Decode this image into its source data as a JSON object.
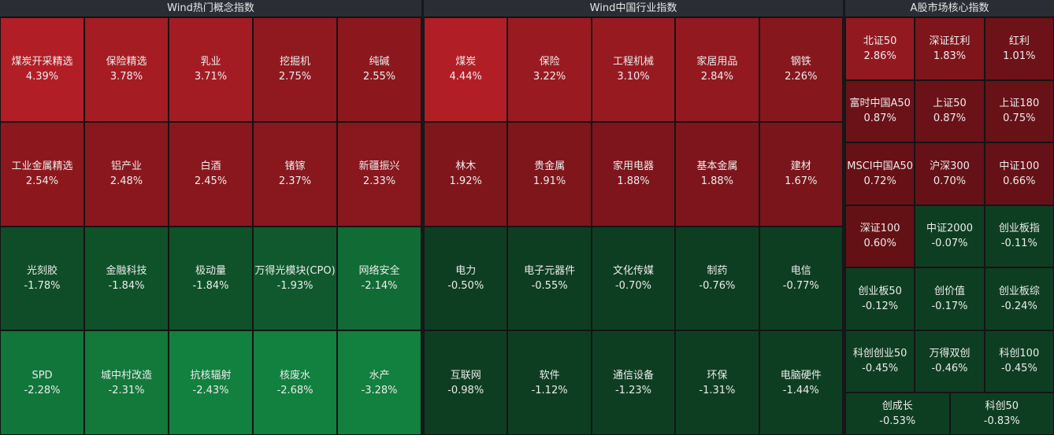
{
  "panels": [
    {
      "title": "Wind热门概念指数",
      "rows": [
        [
          {
            "name": "煤炭开采精选",
            "change": "4.39%"
          },
          {
            "name": "保险精选",
            "change": "3.78%"
          },
          {
            "name": "乳业",
            "change": "3.71%"
          },
          {
            "name": "挖掘机",
            "change": "2.75%"
          },
          {
            "name": "纯碱",
            "change": "2.55%"
          }
        ],
        [
          {
            "name": "工业金属精选",
            "change": "2.54%"
          },
          {
            "name": "铝产业",
            "change": "2.48%"
          },
          {
            "name": "白酒",
            "change": "2.45%"
          },
          {
            "name": "锗镓",
            "change": "2.37%"
          },
          {
            "name": "新疆振兴",
            "change": "2.33%"
          }
        ],
        [
          {
            "name": "光刻胶",
            "change": "-1.78%"
          },
          {
            "name": "金融科技",
            "change": "-1.84%"
          },
          {
            "name": "极动量",
            "change": "-1.84%"
          },
          {
            "name": "万得光模块(CPO)",
            "change": "-1.93%"
          },
          {
            "name": "网络安全",
            "change": "-2.14%"
          }
        ],
        [
          {
            "name": "SPD",
            "change": "-2.28%"
          },
          {
            "name": "城中村改造",
            "change": "-2.31%"
          },
          {
            "name": "抗核辐射",
            "change": "-2.43%"
          },
          {
            "name": "核废水",
            "change": "-2.68%"
          },
          {
            "name": "水产",
            "change": "-3.28%"
          }
        ]
      ]
    },
    {
      "title": "Wind中国行业指数",
      "rows": [
        [
          {
            "name": "煤炭",
            "change": "4.44%"
          },
          {
            "name": "保险",
            "change": "3.22%"
          },
          {
            "name": "工程机械",
            "change": "3.10%"
          },
          {
            "name": "家居用品",
            "change": "2.84%"
          },
          {
            "name": "钢铁",
            "change": "2.26%"
          }
        ],
        [
          {
            "name": "林木",
            "change": "1.92%"
          },
          {
            "name": "贵金属",
            "change": "1.91%"
          },
          {
            "name": "家用电器",
            "change": "1.88%"
          },
          {
            "name": "基本金属",
            "change": "1.88%"
          },
          {
            "name": "建材",
            "change": "1.67%"
          }
        ],
        [
          {
            "name": "电力",
            "change": "-0.50%"
          },
          {
            "name": "电子元器件",
            "change": "-0.55%"
          },
          {
            "name": "文化传媒",
            "change": "-0.70%"
          },
          {
            "name": "制药",
            "change": "-0.76%"
          },
          {
            "name": "电信",
            "change": "-0.77%"
          }
        ],
        [
          {
            "name": "互联网",
            "change": "-0.98%"
          },
          {
            "name": "软件",
            "change": "-1.12%"
          },
          {
            "name": "通信设备",
            "change": "-1.23%"
          },
          {
            "name": "环保",
            "change": "-1.31%"
          },
          {
            "name": "电脑硬件",
            "change": "-1.44%"
          }
        ]
      ]
    },
    {
      "title": "A股市场核心指数",
      "rows": [
        [
          {
            "name": "北证50",
            "change": "2.86%"
          },
          {
            "name": "深证红利",
            "change": "1.83%"
          },
          {
            "name": "红利",
            "change": "1.01%"
          }
        ],
        [
          {
            "name": "富时中国A50",
            "change": "0.87%"
          },
          {
            "name": "上证50",
            "change": "0.87%"
          },
          {
            "name": "上证180",
            "change": "0.75%"
          }
        ],
        [
          {
            "name": "MSCI中国A50",
            "change": "0.72%"
          },
          {
            "name": "沪深300",
            "change": "0.70%"
          },
          {
            "name": "中证100",
            "change": "0.66%"
          }
        ],
        [
          {
            "name": "深证100",
            "change": "0.60%"
          },
          {
            "name": "中证2000",
            "change": "-0.07%"
          },
          {
            "name": "创业板指",
            "change": "-0.11%"
          }
        ],
        [
          {
            "name": "创业板50",
            "change": "-0.12%"
          },
          {
            "name": "创价值",
            "change": "-0.17%"
          },
          {
            "name": "创业板综",
            "change": "-0.24%"
          }
        ],
        [
          {
            "name": "科创创业50",
            "change": "-0.45%"
          },
          {
            "name": "万得双创",
            "change": "-0.46%"
          },
          {
            "name": "科创100",
            "change": "-0.45%"
          }
        ],
        [
          {
            "name": "创成长",
            "change": "-0.53%"
          },
          {
            "name": "科创50",
            "change": "-0.83%"
          }
        ]
      ]
    }
  ]
}
